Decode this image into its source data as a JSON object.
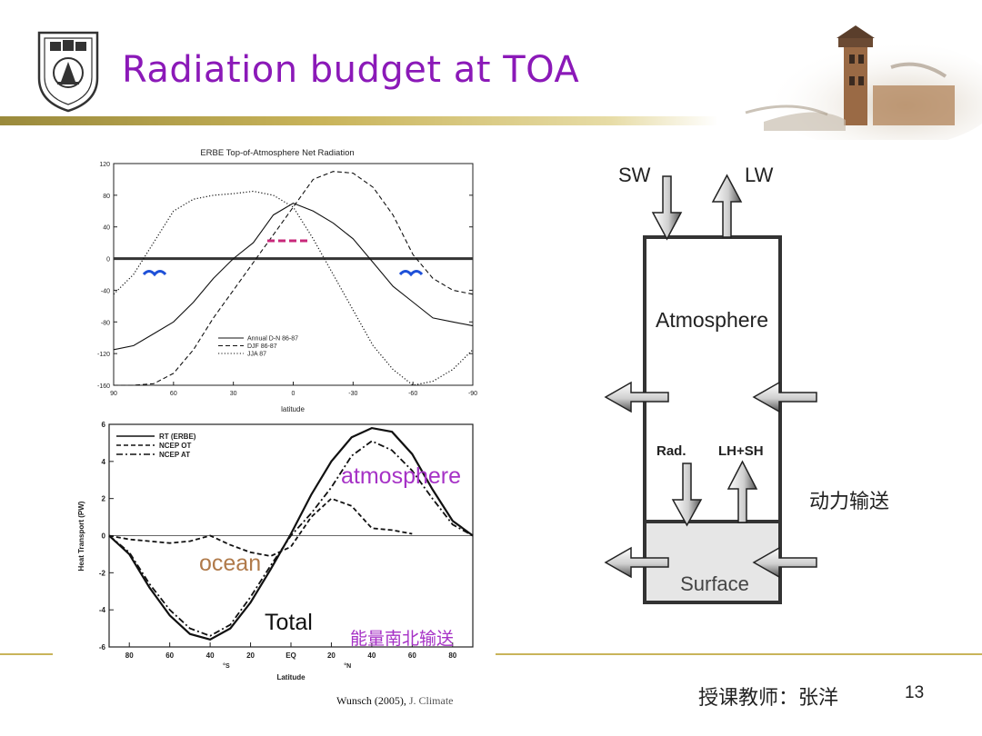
{
  "slide": {
    "title": "Radiation budget at TOA",
    "footer_teacher": "授课教师：张洋",
    "page_number": "13",
    "citation_author": "Wunsch (2005),",
    "citation_journal": "J. Climate"
  },
  "schematic": {
    "sw": "SW",
    "lw": "LW",
    "atmosphere": "Atmosphere",
    "rad": "Rad.",
    "lhsh": "LH+SH",
    "surface": "Surface",
    "dynamic_transport": "动力输送"
  },
  "overlays": {
    "atmosphere": "atmosphere",
    "ocean": "ocean",
    "total": "Total",
    "energy_transport": "能量南北输送"
  },
  "colors": {
    "title": "#8B19B8",
    "atmosphere_label": "#A632C6",
    "ocean_label": "#B07A4A",
    "energy_label": "#A632C6",
    "blue_marks": "#1E50D8",
    "pink_marks": "#C8287A",
    "gold_line": "#C9B45A"
  },
  "chart_data": [
    {
      "type": "line",
      "title": "ERBE Top-of-Atmosphere Net Radiation",
      "xlabel": "latitude",
      "ylabel": "",
      "xlim": [
        90,
        -90
      ],
      "ylim": [
        -160,
        120
      ],
      "xticks": [
        90,
        60,
        30,
        0,
        -30,
        -60,
        -90
      ],
      "yticks": [
        120,
        80,
        40,
        0,
        -40,
        -80,
        -120,
        -160
      ],
      "legend_position": "bottom-center",
      "series": [
        {
          "name": "Annual D-N 86-87",
          "style": "solid",
          "x": [
            90,
            80,
            70,
            60,
            50,
            40,
            30,
            20,
            10,
            0,
            -10,
            -20,
            -30,
            -40,
            -50,
            -60,
            -70,
            -80,
            -90
          ],
          "y": [
            -115,
            -110,
            -95,
            -80,
            -55,
            -25,
            0,
            20,
            55,
            70,
            60,
            45,
            25,
            -5,
            -35,
            -55,
            -75,
            -80,
            -85
          ]
        },
        {
          "name": "DJF 86-87",
          "style": "dashed",
          "x": [
            90,
            80,
            70,
            60,
            50,
            40,
            30,
            20,
            10,
            0,
            -10,
            -20,
            -30,
            -40,
            -50,
            -60,
            -70,
            -80,
            -90
          ],
          "y": [
            -160,
            -160,
            -158,
            -145,
            -115,
            -75,
            -40,
            -5,
            30,
            65,
            100,
            110,
            108,
            90,
            55,
            5,
            -25,
            -40,
            -45
          ]
        },
        {
          "name": "JJA 87",
          "style": "dotted",
          "x": [
            90,
            80,
            70,
            60,
            50,
            40,
            30,
            20,
            10,
            0,
            -10,
            -20,
            -30,
            -40,
            -50,
            -60,
            -70,
            -80,
            -90
          ],
          "y": [
            -45,
            -20,
            20,
            60,
            75,
            80,
            82,
            85,
            80,
            65,
            25,
            -20,
            -65,
            -110,
            -140,
            -160,
            -155,
            -140,
            -115
          ]
        }
      ]
    },
    {
      "type": "line",
      "title": "",
      "xlabel": "Latitude",
      "ylabel": "Heat Transport (PW)",
      "xlim": [
        -90,
        90
      ],
      "ylim": [
        -6,
        6
      ],
      "xticks": [
        -80,
        -60,
        -40,
        -20,
        0,
        20,
        40,
        60,
        80
      ],
      "xtick_labels": [
        "80",
        "60",
        "40",
        "20",
        "EQ",
        "20",
        "40",
        "60",
        "80"
      ],
      "x_hemisphere_labels": [
        "°S",
        "°N"
      ],
      "yticks": [
        -6,
        -4,
        -2,
        0,
        2,
        4,
        6
      ],
      "legend_position": "top-left",
      "series": [
        {
          "name": "RT (ERBE)",
          "style": "solid",
          "x": [
            -90,
            -80,
            -70,
            -60,
            -50,
            -40,
            -30,
            -20,
            -10,
            0,
            10,
            20,
            30,
            40,
            50,
            60,
            70,
            80,
            90
          ],
          "y": [
            0,
            -1.0,
            -2.8,
            -4.3,
            -5.3,
            -5.6,
            -5.0,
            -3.6,
            -1.8,
            0.1,
            2.2,
            4.0,
            5.3,
            5.8,
            5.6,
            4.4,
            2.5,
            0.8,
            0
          ]
        },
        {
          "name": "NCEP OT",
          "style": "dashed",
          "x": [
            -90,
            -80,
            -70,
            -60,
            -50,
            -40,
            -30,
            -20,
            -10,
            0,
            10,
            20,
            30,
            40,
            50,
            60
          ],
          "y": [
            0,
            -0.2,
            -0.3,
            -0.4,
            -0.3,
            0,
            -0.5,
            -0.9,
            -1.1,
            -0.6,
            1.0,
            2.0,
            1.6,
            0.4,
            0.3,
            0.1
          ]
        },
        {
          "name": "NCEP AT",
          "style": "dashdot",
          "x": [
            -90,
            -80,
            -70,
            -60,
            -50,
            -40,
            -30,
            -20,
            -10,
            0,
            10,
            20,
            30,
            40,
            50,
            60,
            70,
            80,
            90
          ],
          "y": [
            0,
            -0.9,
            -2.6,
            -4.0,
            -5.0,
            -5.4,
            -4.8,
            -3.3,
            -1.6,
            0.0,
            1.2,
            2.6,
            4.3,
            5.1,
            4.6,
            3.5,
            2.0,
            0.6,
            0
          ]
        }
      ]
    }
  ]
}
